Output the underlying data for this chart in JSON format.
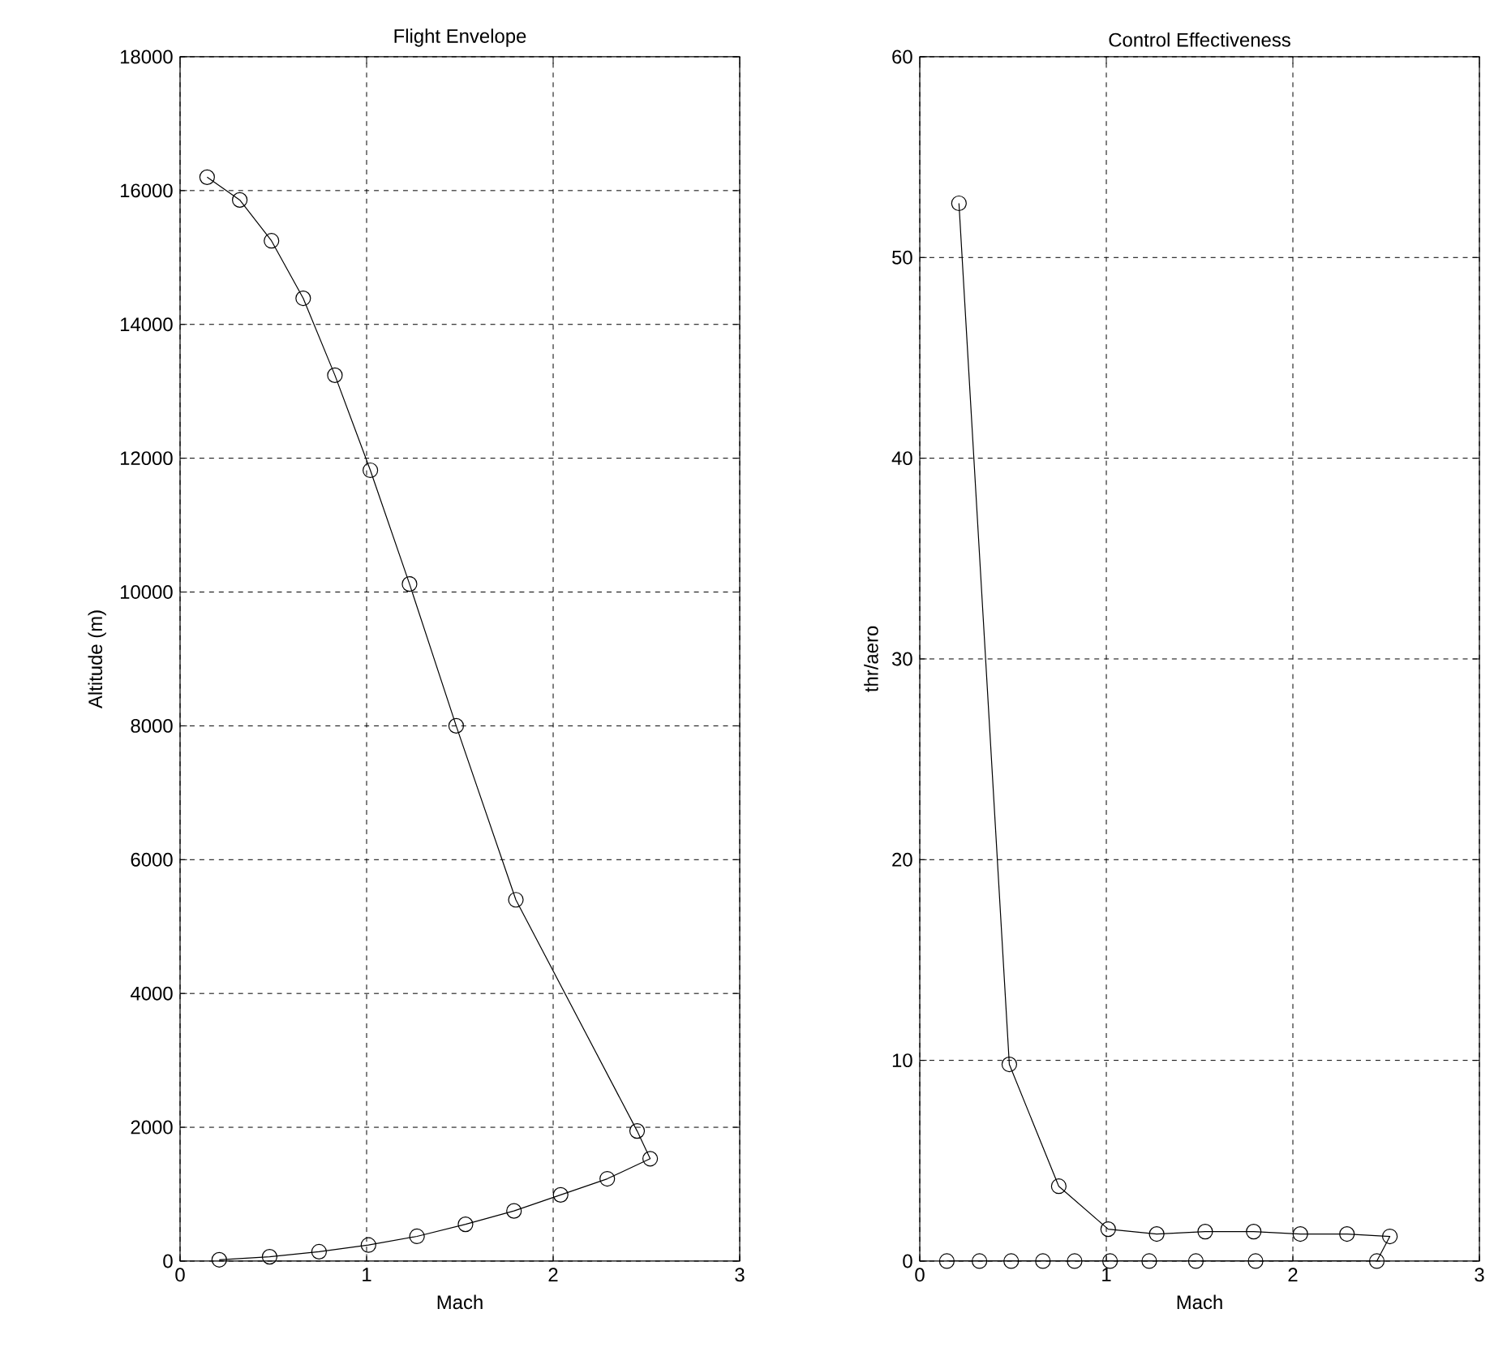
{
  "chart_data": [
    {
      "type": "line",
      "title": "Flight Envelope",
      "xlabel": "Mach",
      "ylabel": "Altitude (m)",
      "x": [
        0.145,
        0.32,
        0.49,
        0.66,
        0.83,
        1.02,
        1.23,
        1.48,
        1.8,
        2.45,
        2.52,
        2.29,
        2.04,
        1.79,
        1.53,
        1.27,
        1.01,
        0.745,
        0.48,
        0.21
      ],
      "values": [
        16200,
        15860,
        15250,
        14390,
        13240,
        11820,
        10120,
        8000,
        5400,
        1945,
        1530,
        1230,
        990,
        750,
        550,
        370,
        240,
        140,
        65,
        20
      ],
      "color": "#000000",
      "marker": "circle",
      "grid": true,
      "xlim": [
        0,
        3
      ],
      "ylim": [
        0,
        18000
      ],
      "xticks": [
        0,
        1,
        2,
        3
      ],
      "yticks": [
        0,
        2000,
        4000,
        6000,
        8000,
        10000,
        12000,
        14000,
        16000,
        18000
      ]
    },
    {
      "type": "line",
      "title": "Control Effectiveness",
      "xlabel": "Mach",
      "ylabel": "thr/aero",
      "x": [
        0.145,
        0.32,
        0.49,
        0.66,
        0.83,
        1.02,
        1.23,
        1.48,
        1.8,
        2.45,
        2.52,
        2.29,
        2.04,
        1.79,
        1.53,
        1.27,
        1.01,
        0.745,
        0.48,
        0.21
      ],
      "values": [
        0,
        0,
        0,
        0,
        0,
        0,
        0,
        0,
        0,
        0,
        1.23,
        1.35,
        1.35,
        1.47,
        1.47,
        1.35,
        1.59,
        3.73,
        9.8,
        52.7
      ],
      "color": "#000000",
      "marker": "circle",
      "grid": true,
      "xlim": [
        0,
        3
      ],
      "ylim": [
        0,
        60
      ],
      "xticks": [
        0,
        1,
        2,
        3
      ],
      "yticks": [
        0,
        10,
        20,
        30,
        40,
        50,
        60
      ]
    }
  ]
}
